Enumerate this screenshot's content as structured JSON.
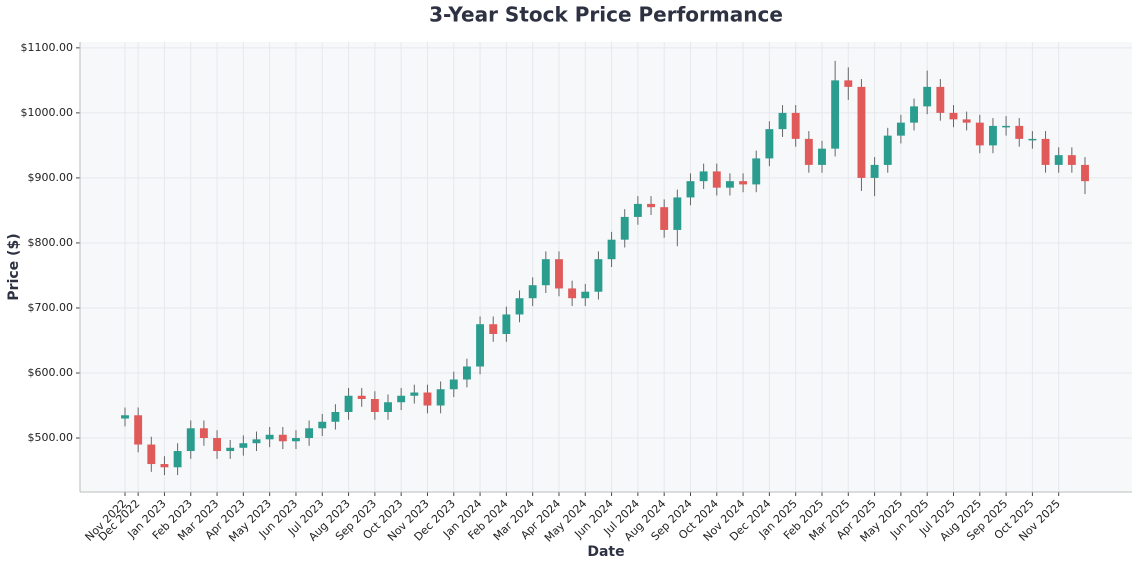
{
  "chart_data": {
    "type": "candlestick",
    "title": "3-Year Stock Price Performance",
    "x_label": "Date",
    "y_label": "Price ($)",
    "categories": [
      "Nov 2022",
      "Dec 2022",
      null,
      "Jan 2023",
      null,
      "Feb 2023",
      null,
      "Mar 2023",
      null,
      "Apr 2023",
      null,
      "May 2023",
      null,
      "Jun 2023",
      null,
      "Jul 2023",
      null,
      "Aug 2023",
      null,
      "Sep 2023",
      null,
      "Oct 2023",
      null,
      "Nov 2023",
      null,
      "Dec 2023",
      null,
      "Jan 2024",
      null,
      "Feb 2024",
      null,
      "Mar 2024",
      null,
      "Apr 2024",
      null,
      "May 2024",
      null,
      "Jun 2024",
      null,
      "Jul 2024",
      null,
      "Aug 2024",
      null,
      "Sep 2024",
      null,
      "Oct 2024",
      null,
      "Nov 2024",
      null,
      "Dec 2024",
      null,
      "Jan 2025",
      null,
      "Feb 2025",
      null,
      "Mar 2025",
      null,
      "Apr 2025",
      null,
      "May 2025",
      null,
      "Jun 2025",
      null,
      "Jul 2025",
      null,
      "Aug 2025",
      null,
      "Sep 2025",
      null,
      "Oct 2025",
      null,
      "Nov 2025",
      null,
      null
    ],
    "open": [
      530,
      535,
      490,
      460,
      455,
      480,
      515,
      500,
      480,
      485,
      492,
      498,
      505,
      495,
      500,
      515,
      525,
      540,
      565,
      560,
      540,
      555,
      565,
      570,
      550,
      575,
      590,
      610,
      675,
      660,
      690,
      715,
      735,
      775,
      730,
      715,
      725,
      775,
      805,
      840,
      860,
      855,
      820,
      870,
      895,
      910,
      885,
      895,
      890,
      930,
      975,
      1000,
      960,
      920,
      945,
      1050,
      1040,
      900,
      920,
      965,
      985,
      1010,
      1040,
      1000,
      990,
      985,
      950,
      980,
      980,
      960,
      960,
      920,
      935,
      920
    ],
    "high": [
      547,
      547,
      502,
      472,
      492,
      527,
      527,
      512,
      497,
      504,
      510,
      517,
      517,
      512,
      527,
      537,
      552,
      577,
      577,
      572,
      567,
      577,
      582,
      582,
      587,
      602,
      622,
      687,
      687,
      702,
      727,
      747,
      787,
      787,
      742,
      737,
      787,
      817,
      852,
      872,
      872,
      867,
      882,
      907,
      922,
      922,
      907,
      907,
      942,
      987,
      1012,
      1012,
      972,
      957,
      1080,
      1070,
      1052,
      932,
      977,
      997,
      1022,
      1065,
      1052,
      1012,
      1002,
      997,
      992,
      995,
      992,
      972,
      972,
      947,
      947,
      932
    ],
    "low": [
      518,
      478,
      448,
      443,
      443,
      468,
      488,
      468,
      468,
      473,
      480,
      486,
      483,
      483,
      488,
      503,
      513,
      528,
      548,
      528,
      528,
      543,
      553,
      538,
      538,
      563,
      578,
      598,
      648,
      648,
      678,
      703,
      723,
      718,
      703,
      703,
      713,
      763,
      793,
      828,
      843,
      808,
      795,
      858,
      883,
      873,
      873,
      878,
      878,
      918,
      963,
      948,
      908,
      908,
      933,
      1020,
      880,
      872,
      908,
      953,
      973,
      998,
      988,
      978,
      973,
      938,
      938,
      965,
      948,
      945,
      908,
      908,
      908,
      875
    ],
    "close": [
      535,
      490,
      460,
      455,
      480,
      515,
      500,
      480,
      485,
      492,
      498,
      505,
      495,
      500,
      515,
      525,
      540,
      565,
      560,
      540,
      555,
      565,
      570,
      550,
      575,
      590,
      610,
      675,
      660,
      690,
      715,
      735,
      775,
      730,
      715,
      725,
      775,
      805,
      840,
      860,
      855,
      820,
      870,
      895,
      910,
      885,
      895,
      890,
      930,
      975,
      1000,
      960,
      920,
      945,
      1050,
      1040,
      900,
      920,
      965,
      985,
      1010,
      1040,
      1000,
      990,
      985,
      950,
      980,
      980,
      960,
      960,
      920,
      935,
      920,
      895
    ],
    "up_color": "#2a9d8f",
    "down_color": "#e05a5a",
    "ylim": [
      417,
      1109
    ],
    "yticks": [
      {
        "value": 500,
        "label": "$500.00"
      },
      {
        "value": 600,
        "label": "$600.00"
      },
      {
        "value": 700,
        "label": "$700.00"
      },
      {
        "value": 800,
        "label": "$800.00"
      },
      {
        "value": 900,
        "label": "$900.00"
      },
      {
        "value": 1000,
        "label": "$1000.00"
      },
      {
        "value": 1100,
        "label": "$1100.00"
      }
    ],
    "grid": true
  }
}
